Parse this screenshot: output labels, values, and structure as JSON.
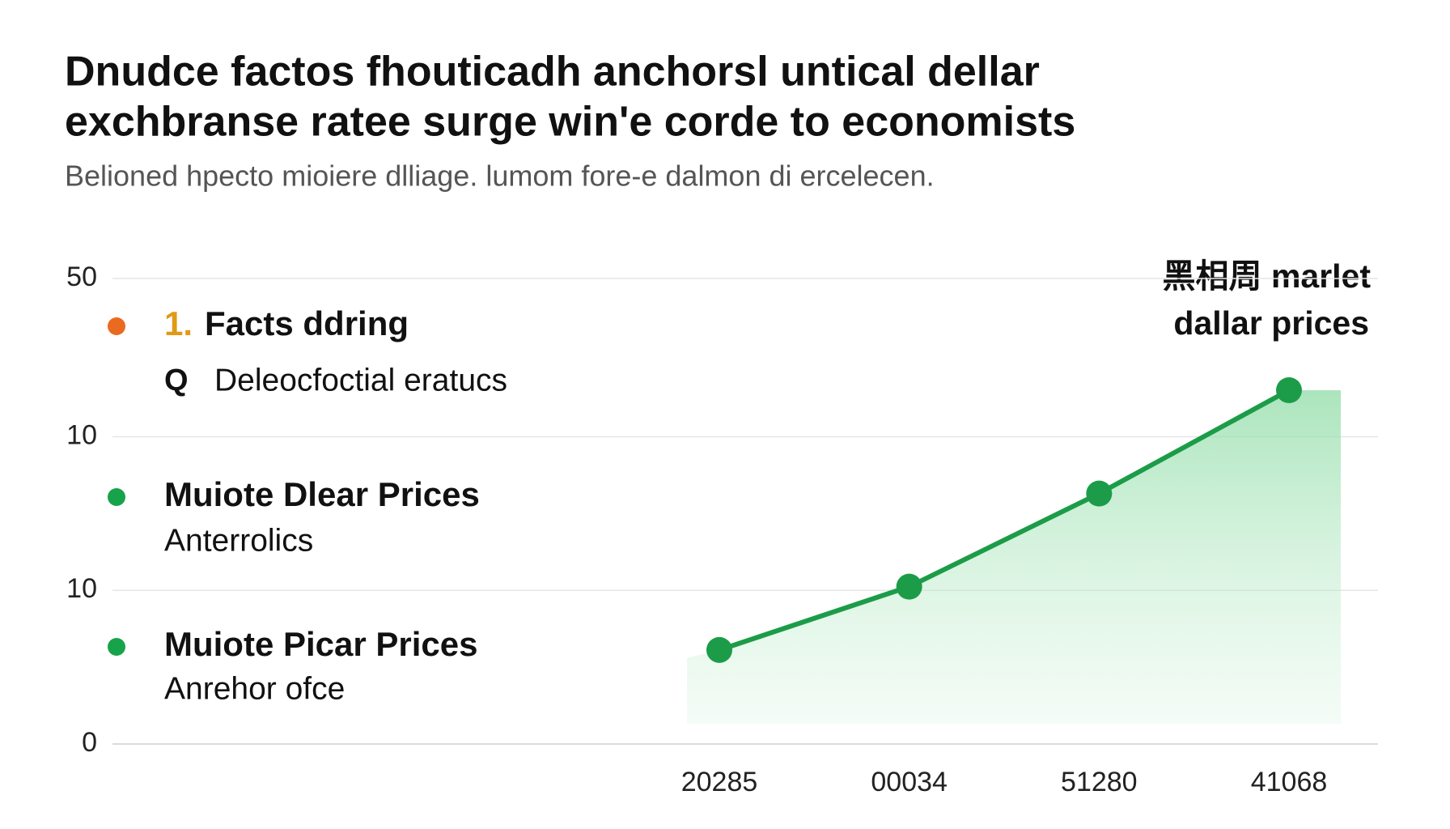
{
  "chart_data": {
    "type": "line",
    "title": [
      "Dnudce factos fhouticadh anchorsl untical dellar",
      "exchbranse ratee surge win'e corde to economists"
    ],
    "subtitle": "Belioned hpecto mioiere dlliage. lumom fore-e dalmon di ercelecen.",
    "annotation": [
      "黑相周 marlet",
      "dallar prices"
    ],
    "categories": [
      "20285",
      "00034",
      "51280",
      "41068"
    ],
    "series": [
      {
        "name": "dallar prices",
        "color": "#1c9c48",
        "values": [
          10.1,
          16.9,
          26.9,
          38.0
        ]
      }
    ],
    "ylim": [
      0,
      50
    ],
    "yticks": [
      0,
      {
        "value": 16.5,
        "label": "10"
      },
      {
        "value": 33,
        "label": "10"
      },
      50
    ],
    "grid": true,
    "notes": [
      {
        "color": "#ea6a1f",
        "number": "1.",
        "title": "Facts ddring",
        "icon": "Q",
        "text": "Deleocfoctial eratucs"
      },
      {
        "color": "#17a34a",
        "title": "Muiote Dlear Prices",
        "text": "Anterrolics"
      },
      {
        "color": "#17a34a",
        "title": "Muiote Picar Prices",
        "text": "Anrehor ofce"
      }
    ]
  }
}
